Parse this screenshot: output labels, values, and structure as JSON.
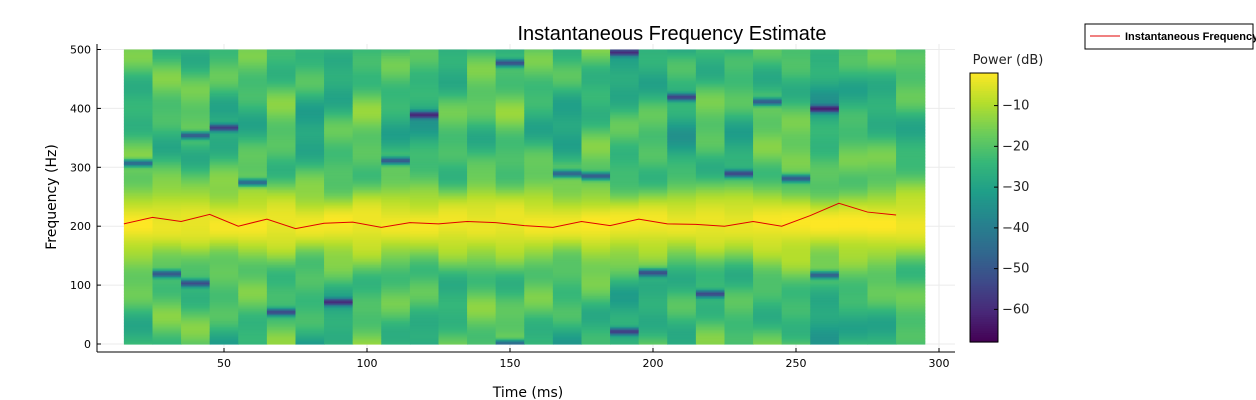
{
  "chart_data": {
    "type": "heatmap",
    "title": "Instantaneous Frequency Estimate",
    "xlabel": "Time (ms)",
    "ylabel": "Frequency (Hz)",
    "xlim": [
      0,
      300
    ],
    "ylim": [
      -10,
      510
    ],
    "xticks": [
      50,
      100,
      150,
      200,
      250,
      300
    ],
    "yticks": [
      0,
      100,
      200,
      300,
      400,
      500
    ],
    "colorbar": {
      "label": "Power (dB)",
      "range": [
        -68,
        -2
      ],
      "ticks": [
        -10,
        -20,
        -30,
        -40,
        -50,
        -60
      ],
      "colormap": "viridis"
    },
    "spectrogram": {
      "time_bins_ms": [
        20,
        30,
        40,
        50,
        60,
        70,
        80,
        90,
        100,
        110,
        120,
        130,
        140,
        150,
        160,
        170,
        180,
        190,
        200,
        210,
        220,
        230,
        240,
        250,
        260,
        270,
        280,
        290
      ],
      "bin_width_ms": 10,
      "freq_range_hz": [
        0,
        500
      ],
      "peak_band_hz": [
        170,
        240
      ],
      "dark_spots": [
        {
          "t": 20,
          "f": 308
        },
        {
          "t": 30,
          "f": 120
        },
        {
          "t": 40,
          "f": 355
        },
        {
          "t": 40,
          "f": 104
        },
        {
          "t": 50,
          "f": 368
        },
        {
          "t": 60,
          "f": 275
        },
        {
          "t": 70,
          "f": 55
        },
        {
          "t": 90,
          "f": 72
        },
        {
          "t": 110,
          "f": 312
        },
        {
          "t": 120,
          "f": 390
        },
        {
          "t": 150,
          "f": 478
        },
        {
          "t": 150,
          "f": 2
        },
        {
          "t": 170,
          "f": 290
        },
        {
          "t": 180,
          "f": 286
        },
        {
          "t": 190,
          "f": 496
        },
        {
          "t": 190,
          "f": 22
        },
        {
          "t": 200,
          "f": 122
        },
        {
          "t": 210,
          "f": 420
        },
        {
          "t": 220,
          "f": 86
        },
        {
          "t": 230,
          "f": 290
        },
        {
          "t": 240,
          "f": 412
        },
        {
          "t": 250,
          "f": 282
        },
        {
          "t": 260,
          "f": 118
        },
        {
          "t": 260,
          "f": 400
        }
      ]
    },
    "series": [
      {
        "name": "Instantaneous Frequency",
        "color": "#e00000",
        "x": [
          15,
          25,
          35,
          45,
          55,
          65,
          75,
          85,
          95,
          105,
          115,
          125,
          135,
          145,
          155,
          165,
          175,
          185,
          195,
          205,
          215,
          225,
          235,
          245,
          255,
          265,
          275,
          285
        ],
        "y": [
          204,
          215,
          208,
          220,
          200,
          212,
          196,
          205,
          207,
          198,
          206,
          204,
          208,
          206,
          201,
          198,
          208,
          201,
          212,
          204,
          203,
          200,
          208,
          200,
          218,
          239,
          224,
          219
        ]
      }
    ],
    "legend_position": "outside-top-right"
  }
}
